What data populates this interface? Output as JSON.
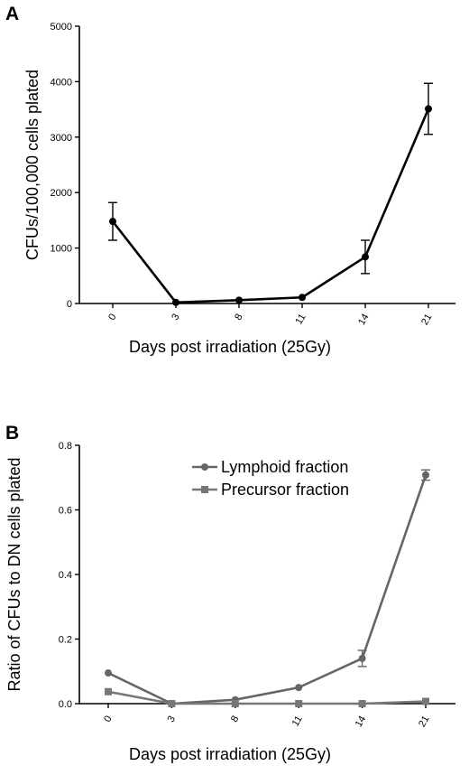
{
  "chart_data": [
    {
      "panel_label": "A",
      "type": "line",
      "xlabel": "Days post irradiation (25Gy)",
      "ylabel": "CFUs/100,000 cells plated",
      "categories": [
        "0",
        "3",
        "8",
        "11",
        "14",
        "21"
      ],
      "yticks": [
        "0",
        "1000",
        "2000",
        "3000",
        "4000",
        "5000"
      ],
      "ylim": [
        0,
        5000
      ],
      "grid": false,
      "series": [
        {
          "color": "#000000",
          "marker": "circle",
          "values": [
            1480,
            20,
            60,
            110,
            840,
            3510
          ],
          "error": [
            340,
            0,
            0,
            0,
            300,
            460
          ]
        }
      ]
    },
    {
      "panel_label": "B",
      "type": "line",
      "xlabel": "Days post irradiation (25Gy)",
      "ylabel": "Ratio of CFUs to DN cells plated",
      "categories": [
        "0",
        "3",
        "8",
        "11",
        "14",
        "21"
      ],
      "yticks": [
        "0.0",
        "0.2",
        "0.4",
        "0.6",
        "0.8"
      ],
      "ylim": [
        0,
        0.8
      ],
      "grid": false,
      "legend_position": "top-right",
      "series": [
        {
          "name": "Lymphoid fraction",
          "color": "#666666",
          "marker": "circle",
          "values": [
            0.095,
            0.0,
            0.012,
            0.05,
            0.14,
            0.708
          ],
          "error": [
            0,
            0,
            0,
            0,
            0.025,
            0.016
          ]
        },
        {
          "name": "Precursor fraction",
          "color": "#777777",
          "marker": "square",
          "values": [
            0.037,
            0.0,
            0.0,
            0.0,
            0.0,
            0.007
          ],
          "error": [
            0,
            0,
            0,
            0,
            0,
            0
          ]
        }
      ]
    }
  ]
}
